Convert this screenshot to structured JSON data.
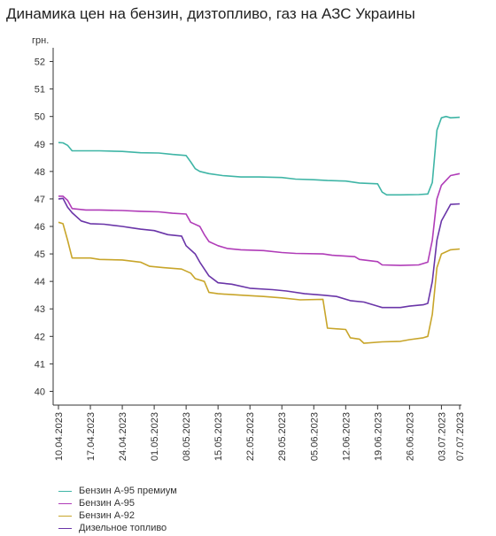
{
  "title": "Динамика цен на бензин, дизтопливо, газ на АЗС Украины",
  "chart_data": {
    "type": "line",
    "title": "Динамика цен на бензин, дизтопливо, газ на АЗС Украины",
    "ylabel": "грн.",
    "xlabel": "",
    "ylim": [
      39.5,
      52.5
    ],
    "yticks": [
      40,
      41,
      42,
      43,
      44,
      45,
      46,
      47,
      48,
      49,
      50,
      51,
      52
    ],
    "xticks": [
      "10.04.2023",
      "17.04.2023",
      "24.04.2023",
      "01.05.2023",
      "08.05.2023",
      "15.05.2023",
      "22.05.2023",
      "29.05.2023",
      "05.06.2023",
      "12.06.2023",
      "19.06.2023",
      "26.06.2023",
      "03.07.2023",
      "07.07.2023"
    ],
    "x_start": "2023-04-10",
    "x_end": "2023-07-07",
    "grid": false,
    "legend_position": "bottom-left",
    "series": [
      {
        "name": "Бензин А-95 премиум",
        "color": "#3fb5a6",
        "points": [
          [
            "2023-04-10",
            49.05
          ],
          [
            "2023-04-11",
            49.04
          ],
          [
            "2023-04-12",
            48.95
          ],
          [
            "2023-04-13",
            48.75
          ],
          [
            "2023-04-16",
            48.75
          ],
          [
            "2023-04-19",
            48.75
          ],
          [
            "2023-04-24",
            48.73
          ],
          [
            "2023-04-28",
            48.68
          ],
          [
            "2023-05-02",
            48.67
          ],
          [
            "2023-05-05",
            48.62
          ],
          [
            "2023-05-08",
            48.58
          ],
          [
            "2023-05-09",
            48.35
          ],
          [
            "2023-05-10",
            48.1
          ],
          [
            "2023-05-11",
            48.0
          ],
          [
            "2023-05-13",
            47.92
          ],
          [
            "2023-05-16",
            47.85
          ],
          [
            "2023-05-20",
            47.8
          ],
          [
            "2023-05-24",
            47.8
          ],
          [
            "2023-05-29",
            47.78
          ],
          [
            "2023-06-01",
            47.72
          ],
          [
            "2023-06-05",
            47.7
          ],
          [
            "2023-06-08",
            47.67
          ],
          [
            "2023-06-12",
            47.65
          ],
          [
            "2023-06-15",
            47.58
          ],
          [
            "2023-06-19",
            47.55
          ],
          [
            "2023-06-20",
            47.25
          ],
          [
            "2023-06-21",
            47.15
          ],
          [
            "2023-06-24",
            47.15
          ],
          [
            "2023-06-28",
            47.16
          ],
          [
            "2023-06-30",
            47.18
          ],
          [
            "2023-07-01",
            47.6
          ],
          [
            "2023-07-02",
            49.5
          ],
          [
            "2023-07-03",
            49.95
          ],
          [
            "2023-07-04",
            50.0
          ],
          [
            "2023-07-05",
            49.95
          ],
          [
            "2023-07-07",
            49.97
          ]
        ]
      },
      {
        "name": "Бензин А-95",
        "color": "#b03cb8",
        "points": [
          [
            "2023-04-10",
            47.1
          ],
          [
            "2023-04-11",
            47.1
          ],
          [
            "2023-04-12",
            46.95
          ],
          [
            "2023-04-13",
            46.65
          ],
          [
            "2023-04-16",
            46.6
          ],
          [
            "2023-04-19",
            46.6
          ],
          [
            "2023-04-24",
            46.58
          ],
          [
            "2023-04-28",
            46.55
          ],
          [
            "2023-05-02",
            46.53
          ],
          [
            "2023-05-05",
            46.48
          ],
          [
            "2023-05-08",
            46.45
          ],
          [
            "2023-05-09",
            46.15
          ],
          [
            "2023-05-11",
            46.0
          ],
          [
            "2023-05-12",
            45.7
          ],
          [
            "2023-05-13",
            45.45
          ],
          [
            "2023-05-15",
            45.3
          ],
          [
            "2023-05-17",
            45.2
          ],
          [
            "2023-05-20",
            45.15
          ],
          [
            "2023-05-25",
            45.12
          ],
          [
            "2023-05-29",
            45.05
          ],
          [
            "2023-06-01",
            45.02
          ],
          [
            "2023-06-07",
            45.0
          ],
          [
            "2023-06-09",
            44.95
          ],
          [
            "2023-06-14",
            44.9
          ],
          [
            "2023-06-15",
            44.8
          ],
          [
            "2023-06-19",
            44.72
          ],
          [
            "2023-06-20",
            44.6
          ],
          [
            "2023-06-24",
            44.58
          ],
          [
            "2023-06-28",
            44.6
          ],
          [
            "2023-06-30",
            44.7
          ],
          [
            "2023-07-01",
            45.5
          ],
          [
            "2023-07-02",
            47.0
          ],
          [
            "2023-07-03",
            47.5
          ],
          [
            "2023-07-05",
            47.85
          ],
          [
            "2023-07-07",
            47.92
          ]
        ]
      },
      {
        "name": "Бензин А-92",
        "color": "#c8a52a",
        "points": [
          [
            "2023-04-10",
            46.15
          ],
          [
            "2023-04-11",
            46.1
          ],
          [
            "2023-04-12",
            45.5
          ],
          [
            "2023-04-13",
            44.85
          ],
          [
            "2023-04-17",
            44.85
          ],
          [
            "2023-04-19",
            44.8
          ],
          [
            "2023-04-24",
            44.78
          ],
          [
            "2023-04-28",
            44.7
          ],
          [
            "2023-04-30",
            44.55
          ],
          [
            "2023-05-03",
            44.5
          ],
          [
            "2023-05-07",
            44.45
          ],
          [
            "2023-05-09",
            44.3
          ],
          [
            "2023-05-10",
            44.1
          ],
          [
            "2023-05-12",
            44.0
          ],
          [
            "2023-05-13",
            43.6
          ],
          [
            "2023-05-15",
            43.55
          ],
          [
            "2023-05-20",
            43.5
          ],
          [
            "2023-05-25",
            43.45
          ],
          [
            "2023-05-29",
            43.4
          ],
          [
            "2023-06-02",
            43.33
          ],
          [
            "2023-06-07",
            43.35
          ],
          [
            "2023-06-08",
            42.3
          ],
          [
            "2023-06-12",
            42.25
          ],
          [
            "2023-06-13",
            41.95
          ],
          [
            "2023-06-15",
            41.9
          ],
          [
            "2023-06-16",
            41.75
          ],
          [
            "2023-06-20",
            41.8
          ],
          [
            "2023-06-24",
            41.82
          ],
          [
            "2023-06-26",
            41.88
          ],
          [
            "2023-06-29",
            41.95
          ],
          [
            "2023-06-30",
            42.0
          ],
          [
            "2023-07-01",
            42.8
          ],
          [
            "2023-07-02",
            44.5
          ],
          [
            "2023-07-03",
            45.0
          ],
          [
            "2023-07-05",
            45.15
          ],
          [
            "2023-07-07",
            45.18
          ]
        ]
      },
      {
        "name": "Дизельное топливо",
        "color": "#6a35a8",
        "points": [
          [
            "2023-04-10",
            47.0
          ],
          [
            "2023-04-11",
            47.02
          ],
          [
            "2023-04-12",
            46.7
          ],
          [
            "2023-04-13",
            46.5
          ],
          [
            "2023-04-15",
            46.2
          ],
          [
            "2023-04-17",
            46.1
          ],
          [
            "2023-04-20",
            46.08
          ],
          [
            "2023-04-24",
            46.0
          ],
          [
            "2023-04-26",
            45.95
          ],
          [
            "2023-04-28",
            45.9
          ],
          [
            "2023-05-01",
            45.85
          ],
          [
            "2023-05-04",
            45.7
          ],
          [
            "2023-05-07",
            45.65
          ],
          [
            "2023-05-08",
            45.3
          ],
          [
            "2023-05-10",
            45.0
          ],
          [
            "2023-05-11",
            44.7
          ],
          [
            "2023-05-13",
            44.2
          ],
          [
            "2023-05-15",
            43.95
          ],
          [
            "2023-05-18",
            43.9
          ],
          [
            "2023-05-22",
            43.75
          ],
          [
            "2023-05-27",
            43.7
          ],
          [
            "2023-05-30",
            43.65
          ],
          [
            "2023-06-03",
            43.55
          ],
          [
            "2023-06-07",
            43.5
          ],
          [
            "2023-06-10",
            43.45
          ],
          [
            "2023-06-13",
            43.3
          ],
          [
            "2023-06-16",
            43.25
          ],
          [
            "2023-06-19",
            43.1
          ],
          [
            "2023-06-20",
            43.05
          ],
          [
            "2023-06-24",
            43.05
          ],
          [
            "2023-06-26",
            43.1
          ],
          [
            "2023-06-29",
            43.15
          ],
          [
            "2023-06-30",
            43.2
          ],
          [
            "2023-07-01",
            44.0
          ],
          [
            "2023-07-02",
            45.5
          ],
          [
            "2023-07-03",
            46.2
          ],
          [
            "2023-07-05",
            46.8
          ],
          [
            "2023-07-07",
            46.82
          ]
        ]
      }
    ]
  }
}
